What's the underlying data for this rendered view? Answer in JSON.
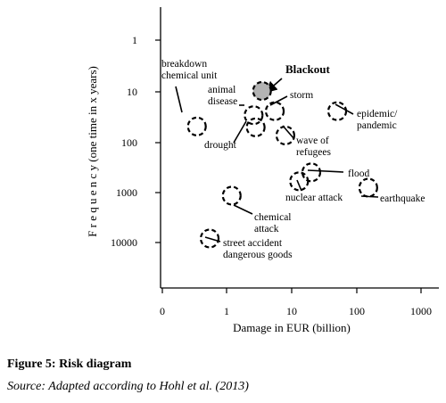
{
  "chart_data": {
    "type": "scatter",
    "title": "",
    "xlabel": "Damage in EUR (billion)",
    "ylabel": "F r e q u e n c y (one time in x years)",
    "x_scale": "log",
    "y_scale": "log",
    "x_ticks": [
      "0",
      "1",
      "10",
      "100",
      "1000"
    ],
    "y_ticks": [
      "1",
      "10",
      "100",
      "1000",
      "10000"
    ],
    "y_inverted": true,
    "grid": false,
    "points": [
      {
        "label": "Blackout",
        "x": 3.5,
        "y": 10,
        "highlight": true
      },
      {
        "label": "breakdown chemical unit",
        "x": 0.35,
        "y": 50
      },
      {
        "label": "animal disease",
        "x": 2.6,
        "y": 30
      },
      {
        "label": "storm",
        "x": 5.5,
        "y": 25
      },
      {
        "label": "epidemic/ pandemic",
        "x": 50,
        "y": 25
      },
      {
        "label": "drought",
        "x": 2.8,
        "y": 52
      },
      {
        "label": "wave of refugees",
        "x": 8,
        "y": 75
      },
      {
        "label": "flood",
        "x": 20,
        "y": 400
      },
      {
        "label": "nuclear attack",
        "x": 13,
        "y": 600
      },
      {
        "label": "earthquake",
        "x": 150,
        "y": 800
      },
      {
        "label": "chemical attack",
        "x": 1.2,
        "y": 1150
      },
      {
        "label": "street accident dangerous goods",
        "x": 0.55,
        "y": 8000
      }
    ]
  },
  "caption": {
    "title": "Figure 5: Risk diagram",
    "source": "Source: Adapted according to Hohl et al. (2013)"
  }
}
